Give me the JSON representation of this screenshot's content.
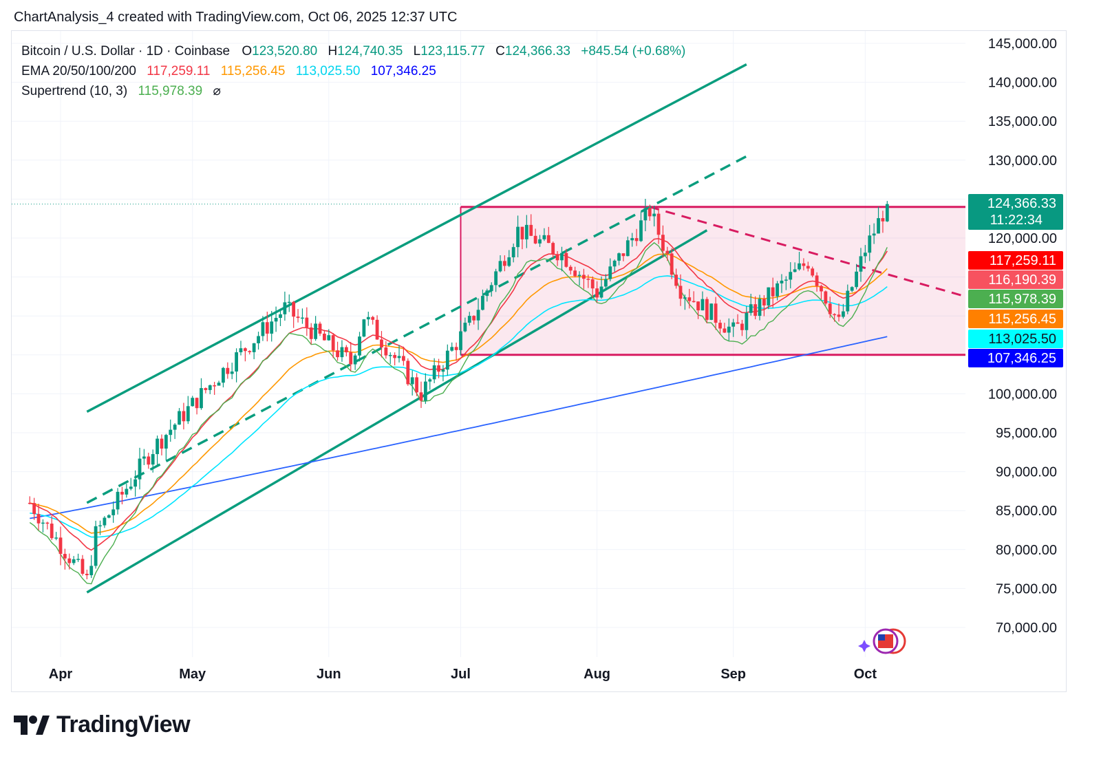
{
  "attribution": "ChartAnalysis_4 created with TradingView.com, Oct 06, 2025 12:37 UTC",
  "legend": {
    "symbol": "Bitcoin / U.S. Dollar · 1D · Coinbase",
    "open_label": "O",
    "open": "123,520.80",
    "high_label": "H",
    "high": "124,740.35",
    "low_label": "L",
    "low": "123,115.77",
    "close_label": "C",
    "close": "124,366.33",
    "change": "+845.54 (+0.68%)",
    "ema_label": "EMA 20/50/100/200",
    "ema20": "117,259.11",
    "ema50": "115,256.45",
    "ema100": "113,025.50",
    "ema200": "107,346.25",
    "supertrend_label": "Supertrend (10, 3)",
    "supertrend": "115,978.39",
    "supertrend_icon": "⌀"
  },
  "colors": {
    "up": "#089981",
    "down": "#f23645",
    "ema20": "#f23645",
    "ema50": "#ff9800",
    "ema100": "#00e5ff",
    "ema200": "#2962ff",
    "supertrend": "#4caf50",
    "channel": "#0a9d7e",
    "range": "#d81b60",
    "ema200_label": "#0000ff"
  },
  "footer": {
    "brand": "TradingView"
  },
  "chart_data": {
    "type": "candlestick",
    "title": "Bitcoin / U.S. Dollar · 1D · Coinbase",
    "x_ticks": [
      "Apr",
      "May",
      "Jun",
      "Jul",
      "Aug",
      "Sep",
      "Oct"
    ],
    "y_ticks": [
      "145,000.00",
      "140,000.00",
      "135,000.00",
      "130,000.00",
      "120,000.00",
      "100,000.00",
      "95,000.00",
      "90,000.00",
      "85,000.00",
      "80,000.00",
      "75,000.00",
      "70,000.00"
    ],
    "ylim": [
      66000,
      147500
    ],
    "price_labels": [
      {
        "value": 124366.33,
        "text": "124,366.33",
        "sub": "11:22:34",
        "color": "#089981"
      },
      {
        "value": 117259.11,
        "text": "117,259.11",
        "color": "#ff0000"
      },
      {
        "value": 116190.39,
        "text": "116,190.39",
        "color": "#f7525f"
      },
      {
        "value": 115978.39,
        "text": "115,978.39",
        "color": "#4caf50"
      },
      {
        "value": 115256.45,
        "text": "115,256.45",
        "color": "#ff8000"
      },
      {
        "value": 113025.5,
        "text": "113,025.50",
        "color": "#00ffff"
      },
      {
        "value": 107346.25,
        "text": "107,346.25",
        "color": "#0000ff"
      }
    ],
    "series": [
      {
        "name": "Bitcoin / U.S. Dollar",
        "ohlc_key_points": [
          [
            "2025-03-25",
            86000
          ],
          [
            "2025-04-07",
            76000
          ],
          [
            "2025-04-09",
            82000
          ],
          [
            "2025-04-22",
            93000
          ],
          [
            "2025-05-08",
            103000
          ],
          [
            "2025-05-22",
            111000
          ],
          [
            "2025-06-06",
            104000
          ],
          [
            "2025-06-09",
            110000
          ],
          [
            "2025-06-22",
            100000
          ],
          [
            "2025-07-03",
            109000
          ],
          [
            "2025-07-14",
            121000
          ],
          [
            "2025-07-24",
            118000
          ],
          [
            "2025-08-01",
            113000
          ],
          [
            "2025-08-13",
            123500
          ],
          [
            "2025-08-20",
            113500
          ],
          [
            "2025-09-01",
            108000
          ],
          [
            "2025-09-08",
            112000
          ],
          [
            "2025-09-18",
            117000
          ],
          [
            "2025-09-25",
            109000
          ],
          [
            "2025-10-01",
            118500
          ],
          [
            "2025-10-06",
            124366.33
          ]
        ]
      },
      {
        "name": "EMA 20",
        "last": 117259.11
      },
      {
        "name": "EMA 50",
        "last": 115256.45
      },
      {
        "name": "EMA 100",
        "last": 113025.5
      },
      {
        "name": "EMA 200",
        "last": 107346.25
      },
      {
        "name": "Supertrend (10, 3)",
        "last": 115978.39
      }
    ],
    "range_box": {
      "top": 124000,
      "bottom": 105000,
      "from": "2025-07-01",
      "to": "2025-10-22"
    },
    "grid": true,
    "legend_position": "top-left"
  }
}
